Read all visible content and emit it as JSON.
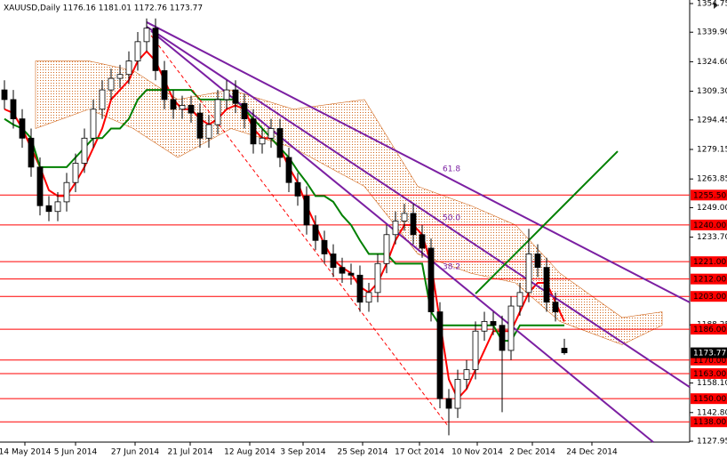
{
  "chart_data": {
    "type": "candlestick",
    "title": "XAUUSD,Daily  1176.16 1181.01 1172.76 1173.77",
    "xlim": [
      -0.5,
      77.1
    ],
    "ylim": [
      1127.95,
      1354.75
    ],
    "yticks": [
      {
        "value": 1354.75,
        "label": "1354.75"
      },
      {
        "value": 1339.9,
        "label": "1339.90"
      },
      {
        "value": 1324.6,
        "label": "1324.60"
      },
      {
        "value": 1309.3,
        "label": "1309.30"
      },
      1294.45,
      1279.15,
      1263.85,
      {
        "value": 1249,
        "label": "1249.00"
      },
      {
        "value": 1233.7,
        "label": "1233.70"
      },
      1188.25,
      {
        "value": 1158.1,
        "label": "1158.10"
      },
      {
        "value": 1142.8,
        "label": "1142.80"
      },
      1127.95
    ],
    "xticks": [
      {
        "value": 2.3,
        "label": "14 May 2014"
      },
      {
        "value": 8,
        "label": "5 Jun 2014"
      },
      {
        "value": 14.7,
        "label": "27 Jun 2014"
      },
      {
        "value": 20.9,
        "label": "21 Jul 2014"
      },
      {
        "value": 27.6,
        "label": "12 Aug 2014"
      },
      {
        "value": 33.6,
        "label": "3 Sep 2014"
      },
      {
        "value": 40.3,
        "label": "25 Sep 2014"
      },
      {
        "value": 46.7,
        "label": "17 Oct 2014"
      },
      {
        "value": 53.2,
        "label": "10 Nov 2014"
      },
      {
        "value": 59.4,
        "label": "2 Dec 2014"
      },
      {
        "value": 66.1,
        "label": "24 Dec 2014"
      }
    ],
    "open": [
      1310,
      1305,
      1295,
      1285,
      1270,
      1250,
      1247,
      1252,
      1262,
      1272,
      1285,
      1300,
      1310,
      1316,
      1318,
      1325,
      1335,
      1342,
      1320,
      1305,
      1300,
      1302,
      1298,
      1285,
      1292,
      1305,
      1310,
      1303,
      1295,
      1282,
      1285,
      1290,
      1275,
      1262,
      1255,
      1240,
      1232,
      1225,
      1218,
      1215,
      1214,
      1200,
      1205,
      1220,
      1235,
      1242,
      1246,
      1235,
      1228,
      1195,
      1150,
      1145,
      1160,
      1165,
      1185,
      1190,
      1188,
      1175,
      1198,
      1205,
      1225,
      1218,
      1200,
      1176.16
    ],
    "high": [
      1315,
      1310,
      1300,
      1290,
      1275,
      1255,
      1257,
      1267,
      1277,
      1290,
      1305,
      1315,
      1321,
      1323,
      1330,
      1340,
      1347,
      1347,
      1325,
      1310,
      1307,
      1307,
      1303,
      1297,
      1310,
      1315,
      1315,
      1308,
      1300,
      1290,
      1295,
      1295,
      1280,
      1267,
      1260,
      1245,
      1237,
      1230,
      1223,
      1220,
      1219,
      1210,
      1225,
      1240,
      1247,
      1251,
      1251,
      1240,
      1233,
      1200,
      1155,
      1165,
      1170,
      1190,
      1195,
      1195,
      1193,
      1203,
      1210,
      1238,
      1230,
      1223,
      1205,
      1181.01
    ],
    "low": [
      1300,
      1290,
      1280,
      1265,
      1245,
      1242,
      1242,
      1247,
      1257,
      1267,
      1280,
      1295,
      1305,
      1311,
      1313,
      1320,
      1330,
      1315,
      1300,
      1295,
      1295,
      1293,
      1280,
      1280,
      1287,
      1300,
      1298,
      1290,
      1277,
      1277,
      1280,
      1270,
      1257,
      1250,
      1235,
      1227,
      1220,
      1213,
      1210,
      1209,
      1195,
      1195,
      1200,
      1215,
      1230,
      1237,
      1230,
      1223,
      1190,
      1145,
      1131,
      1140,
      1155,
      1160,
      1180,
      1183,
      1143,
      1170,
      1193,
      1200,
      1213,
      1195,
      1190,
      1172.76
    ],
    "close": [
      1305,
      1295,
      1285,
      1270,
      1250,
      1247,
      1252,
      1262,
      1272,
      1285,
      1300,
      1310,
      1316,
      1318,
      1325,
      1335,
      1342,
      1320,
      1305,
      1300,
      1302,
      1298,
      1285,
      1292,
      1305,
      1310,
      1303,
      1295,
      1282,
      1285,
      1290,
      1275,
      1262,
      1255,
      1240,
      1232,
      1225,
      1218,
      1215,
      1214,
      1200,
      1205,
      1220,
      1235,
      1242,
      1246,
      1235,
      1228,
      1195,
      1150,
      1145,
      1160,
      1165,
      1185,
      1190,
      1188,
      1175,
      1198,
      1205,
      1225,
      1218,
      1200,
      1195,
      1173.77
    ],
    "lines": [
      {
        "color": "#ff0000",
        "values": [
          1300,
          1298,
          1290,
          1280,
          1270,
          1258,
          1255,
          1255,
          1262,
          1270,
          1280,
          1290,
          1305,
          1310,
          1315,
          1325,
          1330,
          1325,
          1315,
          1305,
          1300,
          1300,
          1295,
          1292,
          1295,
          1300,
          1302,
          1300,
          1290,
          1285,
          1285,
          1280,
          1270,
          1262,
          1250,
          1240,
          1230,
          1222,
          1218,
          1215,
          1208,
          1205,
          1210,
          1220,
          1232,
          1240,
          1240,
          1235,
          1220,
          1190,
          1160,
          1150,
          1155,
          1165,
          1175,
          1185,
          1185,
          1185,
          1195,
          1205,
          1210,
          1210,
          1200,
          1190
        ]
      },
      {
        "color": "#008000",
        "values": [
          1295,
          1292,
          1290,
          1285,
          1270,
          1270,
          1270,
          1270,
          1275,
          1280,
          1285,
          1285,
          1290,
          1290,
          1295,
          1305,
          1310,
          1310,
          1310,
          1310,
          1310,
          1310,
          1305,
          1305,
          1305,
          1305,
          1305,
          1300,
          1295,
          1290,
          1285,
          1280,
          1275,
          1268,
          1262,
          1255,
          1255,
          1252,
          1245,
          1240,
          1232,
          1225,
          1225,
          1225,
          1220,
          1220,
          1220,
          1220,
          1195,
          1188,
          1188,
          1188,
          1188,
          1188,
          1188,
          1188,
          1180,
          1180,
          1188,
          1188,
          1188,
          1188,
          1188,
          1188
        ]
      }
    ],
    "cloud": {
      "color": "#d2691e",
      "x": [
        3.5,
        9.5,
        14.5,
        19.5,
        25.5,
        32.5,
        40.5,
        46.5,
        52.5,
        57.5,
        62.5,
        69.5,
        74
      ],
      "upper": [
        1325,
        1325,
        1320,
        1305,
        1310,
        1300,
        1305,
        1260,
        1250,
        1240,
        1215,
        1192,
        1195
      ],
      "lower": [
        1290,
        1300,
        1290,
        1275,
        1290,
        1280,
        1260,
        1225,
        1215,
        1210,
        1190,
        1178,
        1188
      ]
    },
    "trendlines": [
      {
        "color": "#7b1fa2",
        "x": [
          16,
          77.1
        ],
        "y": [
          1345.1,
          1199.9
        ]
      },
      {
        "color": "#7b1fa2",
        "x": [
          16,
          77.1
        ],
        "y": [
          1342.8,
          1156
        ]
      },
      {
        "color": "#7b1fa2",
        "x": [
          16.5,
          73
        ],
        "y": [
          1340.5,
          1127.5
        ]
      },
      {
        "color": "#008000",
        "x": [
          53,
          69
        ],
        "y": [
          1204.4,
          1278.2
        ]
      },
      {
        "color": "#ff0000",
        "x": [
          16.5,
          50
        ],
        "y": [
          1338.2,
          1135.3
        ],
        "dashed": true
      }
    ],
    "fib_labels": [
      "61.8",
      "50.0",
      "38.2"
    ],
    "hlines": [
      {
        "value": 1255.5,
        "label": "1255.50"
      },
      {
        "value": 1240,
        "label": "1240.00"
      },
      {
        "value": 1221,
        "label": "1221.00"
      },
      {
        "value": 1212,
        "label": "1212.00"
      },
      {
        "value": 1203,
        "label": "1203.00"
      },
      {
        "value": 1186,
        "label": "1186.00"
      },
      {
        "value": 1170,
        "label": "1170.00"
      },
      {
        "value": 1163,
        "label": "1163.00"
      },
      {
        "value": 1150,
        "label": "1150.00"
      },
      {
        "value": 1138,
        "label": "1138.00"
      }
    ],
    "hline_color": "#ff0000"
  }
}
